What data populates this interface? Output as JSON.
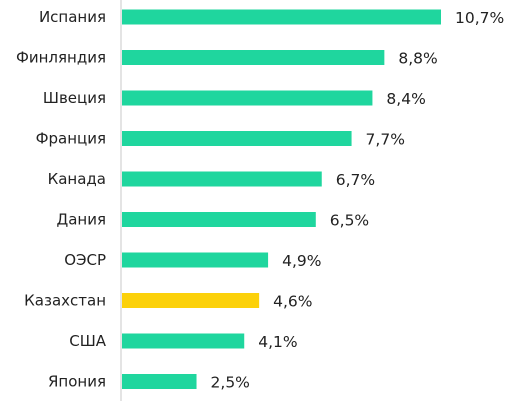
{
  "chart_data": {
    "type": "bar",
    "orientation": "horizontal",
    "categories": [
      "Испания",
      "Финляндия",
      "Швеция",
      "Франция",
      "Канада",
      "Дания",
      "ОЭСР",
      "Казахстан",
      "США",
      "Япония"
    ],
    "values": [
      10.7,
      8.8,
      8.4,
      7.7,
      6.7,
      6.5,
      4.9,
      4.6,
      4.1,
      2.5
    ],
    "value_labels": [
      "10,7%",
      "8,8%",
      "8,4%",
      "7,7%",
      "6,7%",
      "6,5%",
      "4,9%",
      "4,6%",
      "4,1%",
      "2,5%"
    ],
    "highlight_category": "Казахстан",
    "title": "",
    "xlabel": "",
    "ylabel": "",
    "xlim": [
      0,
      10.7
    ],
    "grid": false,
    "legend": "none"
  },
  "colors": {
    "bar": "#1fd69e",
    "highlight": "#fcd10a",
    "axis": "#c8c8c8",
    "text": "#222222"
  }
}
